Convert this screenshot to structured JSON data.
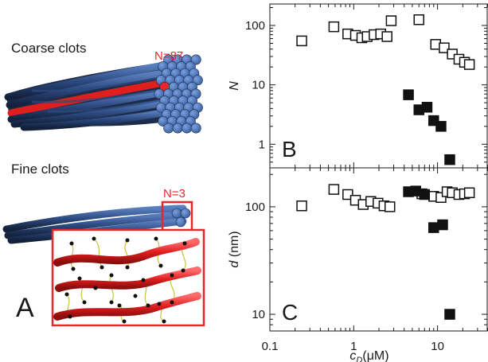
{
  "panel_a": {
    "letter": "A",
    "coarse": {
      "title": "Coarse clots",
      "label": "N=87"
    },
    "fine": {
      "title": "Fine clots",
      "label": "N=3"
    },
    "colors": {
      "fiber_blue": "#3b5f9c",
      "fiber_dark": "#1f2f4c",
      "highlight_red": "#e8262b",
      "linker_yellow": "#c9c23a"
    }
  },
  "chart_data": [
    {
      "panel": "B",
      "type": "scatter",
      "xscale": "log",
      "yscale": "log",
      "xlim": [
        0.1,
        40
      ],
      "ylim": [
        0.4,
        230
      ],
      "ylabel": "N",
      "yticks": [
        "1",
        "10",
        "100"
      ],
      "series": [
        {
          "marker": "open-square",
          "points": [
            [
              0.24,
              55
            ],
            [
              0.58,
              95
            ],
            [
              0.85,
              72
            ],
            [
              1.05,
              68
            ],
            [
              1.25,
              62
            ],
            [
              1.45,
              65
            ],
            [
              1.75,
              70
            ],
            [
              2.1,
              72
            ],
            [
              2.5,
              65
            ],
            [
              2.8,
              120
            ],
            [
              6.0,
              125
            ],
            [
              9.5,
              48
            ],
            [
              12,
              42
            ],
            [
              15,
              33
            ],
            [
              18,
              27
            ],
            [
              21,
              24
            ],
            [
              24,
              22
            ]
          ]
        },
        {
          "marker": "filled-square",
          "points": [
            [
              4.5,
              6.8
            ],
            [
              6,
              3.8
            ],
            [
              7.5,
              4.2
            ],
            [
              9,
              2.5
            ],
            [
              11,
              2.0
            ],
            [
              14,
              0.55
            ]
          ]
        }
      ]
    },
    {
      "panel": "C",
      "type": "scatter",
      "xscale": "log",
      "yscale": "log",
      "xlim": [
        0.1,
        40
      ],
      "ylim": [
        7,
        230
      ],
      "xlabel": "c",
      "xlabel_sub": "D",
      "xlabel_unit": "(μM)",
      "ylabel": "d",
      "ylabel_unit": "(nm)",
      "xticks": [
        "0.1",
        "1",
        "10"
      ],
      "yticks": [
        "10",
        "100"
      ],
      "series": [
        {
          "marker": "open-square",
          "points": [
            [
              0.24,
              102
            ],
            [
              0.58,
              145
            ],
            [
              0.85,
              130
            ],
            [
              1.05,
              115
            ],
            [
              1.3,
              105
            ],
            [
              1.6,
              112
            ],
            [
              1.95,
              108
            ],
            [
              2.3,
              102
            ],
            [
              2.7,
              100
            ],
            [
              6.5,
              132
            ],
            [
              9,
              125
            ],
            [
              11,
              122
            ],
            [
              13,
              138
            ],
            [
              15,
              135
            ],
            [
              18,
              130
            ],
            [
              21,
              132
            ],
            [
              24,
              135
            ]
          ]
        },
        {
          "marker": "filled-square",
          "points": [
            [
              4.5,
              138
            ],
            [
              5.5,
              140
            ],
            [
              7,
              130
            ],
            [
              9,
              64
            ],
            [
              11.5,
              68
            ],
            [
              14,
              10
            ]
          ]
        }
      ]
    }
  ]
}
